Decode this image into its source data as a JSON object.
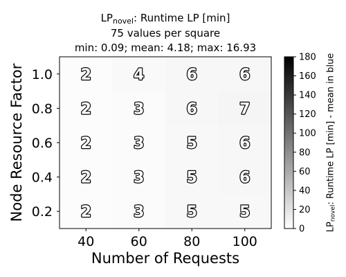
{
  "chart_data": {
    "type": "heatmap",
    "title": {
      "line1_prefix": "LP",
      "line1_subscript": "novel",
      "line1_suffix": ": Runtime LP [min]",
      "line2": "75 values per square",
      "line3": "min: 0.09; mean: 4.18; max: 16.93"
    },
    "xlabel": "Number of Requests",
    "ylabel": "Node Resource Factor",
    "x_categories": [
      "40",
      "60",
      "80",
      "100"
    ],
    "y_categories": [
      "0.2",
      "0.4",
      "0.6",
      "0.8",
      "1.0"
    ],
    "cell_labels": [
      [
        "2",
        "3",
        "5",
        "5"
      ],
      [
        "2",
        "3",
        "5",
        "6"
      ],
      [
        "2",
        "3",
        "5",
        "6"
      ],
      [
        "2",
        "3",
        "6",
        "7"
      ],
      [
        "2",
        "4",
        "6",
        "6"
      ]
    ],
    "values": [
      [
        2,
        3,
        5,
        5
      ],
      [
        2,
        3,
        5,
        6
      ],
      [
        2,
        3,
        5,
        6
      ],
      [
        2,
        3,
        6,
        7
      ],
      [
        2,
        4,
        6,
        6
      ]
    ],
    "colormap": {
      "low": "#ffffff",
      "high": "#000000"
    },
    "colorbar": {
      "range": [
        0,
        180
      ],
      "ticks": [
        "0",
        "20",
        "40",
        "60",
        "80",
        "100",
        "120",
        "140",
        "160",
        "180"
      ],
      "label_prefix": "LP",
      "label_subscript": "novel",
      "label_suffix": ": Runtime LP [min] - mean in blue"
    },
    "grid": false
  }
}
